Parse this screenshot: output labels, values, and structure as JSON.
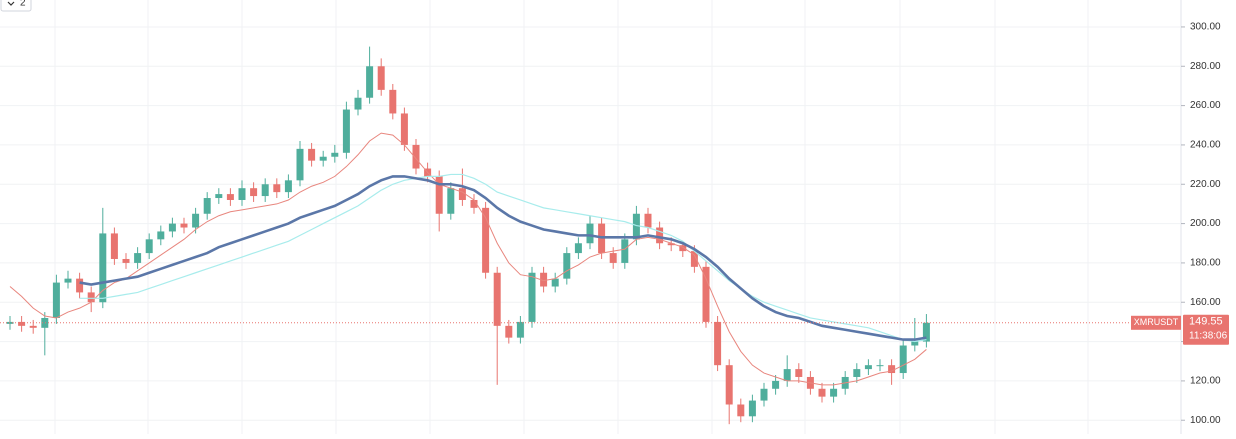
{
  "chart_data": {
    "type": "candlestick",
    "toggle_label": "2",
    "ylim": [
      93,
      313.7
    ],
    "yticks": [
      {
        "value": 100,
        "label": "100.00"
      },
      {
        "value": 120,
        "label": "120.00"
      },
      {
        "value": 140,
        "label": "140.00"
      },
      {
        "value": 160,
        "label": "160.00"
      },
      {
        "value": 180,
        "label": "180.00"
      },
      {
        "value": 200,
        "label": "200.00"
      },
      {
        "value": 220,
        "label": "220.00"
      },
      {
        "value": 240,
        "label": "240.00"
      },
      {
        "value": 260,
        "label": "260.00"
      },
      {
        "value": 280,
        "label": "280.00"
      },
      {
        "value": 300,
        "label": "300.00"
      }
    ],
    "grid": true,
    "up_color": "#4fae9c",
    "down_color": "#e8746f",
    "series": [
      {
        "name": "XMRUSDT",
        "open": [
          149,
          150,
          148,
          147,
          152,
          170,
          172,
          165,
          160,
          195,
          182,
          180,
          185,
          192,
          196,
          200,
          198,
          205,
          213,
          215,
          212,
          218,
          214,
          220,
          216,
          222,
          238,
          232,
          234,
          236,
          258,
          264,
          280,
          268,
          256,
          240,
          228,
          224,
          205,
          218,
          212,
          208,
          175,
          148,
          142,
          150,
          175,
          168,
          172,
          185,
          190,
          200,
          185,
          180,
          192,
          205,
          198,
          190,
          189,
          186,
          178,
          150,
          128,
          108,
          102,
          110,
          116,
          120,
          126,
          122,
          116,
          112,
          116,
          122,
          126,
          128,
          128,
          124,
          138,
          140
        ],
        "high": [
          153,
          153,
          151,
          155,
          174,
          176,
          175,
          168,
          208,
          198,
          185,
          188,
          195,
          199,
          203,
          203,
          208,
          216,
          218,
          218,
          222,
          221,
          223,
          223,
          225,
          242,
          241,
          237,
          240,
          262,
          268,
          290,
          284,
          271,
          259,
          243,
          231,
          227,
          221,
          228,
          215,
          211,
          178,
          151,
          153,
          178,
          178,
          175,
          188,
          193,
          204,
          203,
          188,
          195,
          209,
          208,
          201,
          193,
          191,
          189,
          181,
          153,
          131,
          111,
          113,
          119,
          123,
          133,
          129,
          125,
          119,
          119,
          125,
          129,
          131,
          131,
          131,
          141,
          152,
          154
        ],
        "low": [
          146,
          145,
          144,
          133,
          149,
          167,
          162,
          155,
          157,
          179,
          177,
          177,
          182,
          189,
          193,
          195,
          195,
          202,
          210,
          209,
          209,
          211,
          211,
          213,
          213,
          219,
          229,
          229,
          231,
          233,
          255,
          261,
          265,
          253,
          237,
          225,
          221,
          196,
          202,
          209,
          205,
          172,
          118,
          139,
          139,
          147,
          165,
          165,
          169,
          182,
          187,
          182,
          177,
          177,
          189,
          195,
          187,
          186,
          183,
          175,
          147,
          125,
          98,
          99,
          99,
          107,
          113,
          117,
          119,
          113,
          109,
          109,
          113,
          119,
          123,
          125,
          118,
          121,
          135,
          137
        ],
        "close": [
          150,
          148,
          147,
          152,
          170,
          172,
          165,
          160,
          195,
          182,
          180,
          185,
          192,
          196,
          200,
          198,
          205,
          213,
          215,
          212,
          218,
          214,
          220,
          216,
          222,
          238,
          232,
          234,
          236,
          258,
          264,
          280,
          268,
          256,
          240,
          228,
          224,
          205,
          218,
          212,
          208,
          175,
          148,
          142,
          150,
          175,
          168,
          172,
          185,
          190,
          200,
          185,
          180,
          192,
          205,
          198,
          190,
          189,
          186,
          178,
          150,
          128,
          108,
          102,
          110,
          116,
          120,
          126,
          122,
          116,
          112,
          116,
          122,
          126,
          128,
          128,
          124,
          138,
          140,
          149.55
        ]
      }
    ],
    "lines": [
      {
        "color": "#e8867e",
        "width": 1,
        "values": [
          168,
          163,
          157,
          153,
          152,
          155,
          157,
          160,
          166,
          170,
          172,
          176,
          180,
          184,
          188,
          192,
          197,
          201,
          204,
          206,
          207,
          208,
          209,
          210,
          212,
          216,
          219,
          221,
          224,
          229,
          235,
          242,
          246,
          245,
          240,
          233,
          226,
          220,
          218,
          216,
          212,
          203,
          190,
          180,
          174,
          173,
          171,
          172,
          176,
          179,
          183,
          185,
          186,
          187,
          192,
          193,
          192,
          190,
          188,
          184,
          172,
          158,
          145,
          135,
          128,
          124,
          122,
          120,
          120,
          119,
          118,
          118,
          119,
          120,
          122,
          124,
          125,
          128,
          131,
          136
        ]
      },
      {
        "color": "#a8ecec",
        "width": 1.2,
        "values": [
          null,
          null,
          null,
          null,
          null,
          null,
          162,
          162,
          162,
          163,
          164,
          165,
          167,
          169,
          171,
          173,
          175,
          177,
          179,
          181,
          183,
          185,
          187,
          189,
          191,
          194,
          197,
          200,
          203,
          206,
          209,
          213,
          217,
          220,
          222,
          223,
          224,
          224,
          225,
          225,
          223,
          220,
          216,
          214,
          212,
          210,
          208,
          207,
          206,
          205,
          204,
          203,
          202,
          201,
          199,
          198,
          196,
          194,
          191,
          186,
          181,
          176,
          171,
          167,
          163,
          160,
          158,
          156,
          154,
          152,
          151,
          150,
          149,
          148,
          147,
          145,
          143,
          141,
          140,
          141
        ]
      },
      {
        "color": "#5b77a8",
        "width": 2.6,
        "values": [
          null,
          null,
          null,
          null,
          null,
          null,
          170,
          169,
          170,
          171,
          172,
          173,
          175,
          177,
          179,
          181,
          183,
          185,
          188,
          190,
          192,
          194,
          196,
          198,
          200,
          203,
          205,
          207,
          209,
          212,
          215,
          219,
          222,
          224,
          224,
          223,
          222,
          220,
          220,
          219,
          217,
          213,
          208,
          204,
          201,
          199,
          197,
          196,
          195,
          194,
          194,
          193,
          193,
          193,
          193,
          194,
          193,
          192,
          190,
          187,
          183,
          178,
          172,
          167,
          162,
          158,
          155,
          153,
          152,
          150,
          148,
          147,
          146,
          145,
          144,
          143,
          142,
          141,
          141,
          142
        ]
      }
    ],
    "last_price": {
      "value": 149.55,
      "countdown": "11:38:06"
    }
  }
}
